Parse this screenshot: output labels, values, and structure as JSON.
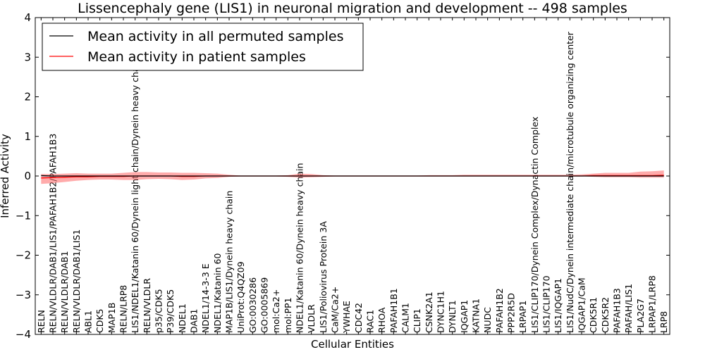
{
  "chart_data": {
    "type": "line",
    "title": "Lissencephaly gene (LIS1) in neuronal migration and development -- 498 samples",
    "xlabel": "Cellular Entities",
    "ylabel": "Inferred Activity",
    "ylim": [
      -4,
      4
    ],
    "yticks": [
      -4,
      -3,
      -2,
      -1,
      0,
      1,
      2,
      3,
      4
    ],
    "ytick_labels": [
      "−4",
      "−3",
      "−2",
      "−1",
      "0",
      "1",
      "2",
      "3",
      "4"
    ],
    "legend_position": "upper-left",
    "categories": [
      "RELN",
      "RELN/VLDLR/DAB1/LIS1/PAFAH1B2/PAFAH1B3",
      "RELN/VLDLR/DAB1",
      "RELN/VLDLR/DAB1/LIS1",
      "ABL1",
      "CDK5",
      "MAP1B",
      "RELN/LRP8",
      "LIS1/NDEL1/Katanin 60/Dynein light chain/Dynein heavy chain",
      "RELN/VLDLR",
      "p35/CDK5",
      "P39/CDK5",
      "NDEL1",
      "DAB1",
      "NDEL1/14-3-3 E",
      "NDEL1/Katanin 60",
      "MAP1B/LIS1/Dynein heavy chain",
      "UniProt:Q4QZ09",
      "GO:0030286",
      "GO:0005869",
      "mol:Ca2+",
      "mol:PP1",
      "NDEL1/Katanin 60/Dynein heavy chain",
      "VLDLR",
      "LIS1/Poliovirus Protein 3A",
      "CaM/Ca2+",
      "YWHAE",
      "CDC42",
      "RAC1",
      "RHOA",
      "PAFAH1B1",
      "CALM1",
      "CLIP1",
      "CSNK2A1",
      "DYNC1H1",
      "DYNLT1",
      "IQGAP1",
      "KATNA1",
      "NUDC",
      "PAFAH1B2",
      "PPP2R5D",
      "LRPAP1",
      "LIS1/CLIP170/Dynein Complex/Dynactin Complex",
      "LIS1/CLIP170",
      "LIS1/IQGAP1",
      "LIS1/NudC/Dynein intermediate chain/microtubule organizing center",
      "IQGAP1/CaM",
      "CDK5R1",
      "CDK5R2",
      "PAFAH1B3",
      "PAFAH/LIS1",
      "PLA2G7",
      "LRPAP1/LRP8",
      "LRP8"
    ],
    "series": [
      {
        "name": "Mean activity in all permuted samples",
        "color": "#000000",
        "values": [
          0.01,
          0.0,
          0.0,
          0.0,
          0.0,
          0.0,
          0.0,
          0.0,
          0.0,
          0.0,
          0.0,
          0.0,
          0.0,
          0.0,
          0.0,
          0.0,
          0.0,
          0.0,
          0.0,
          0.0,
          0.0,
          0.0,
          0.0,
          0.0,
          0.0,
          0.0,
          0.0,
          0.0,
          0.0,
          0.0,
          0.0,
          0.0,
          0.0,
          0.0,
          0.0,
          0.0,
          0.0,
          0.0,
          0.0,
          0.0,
          0.0,
          0.0,
          0.0,
          0.0,
          0.0,
          0.0,
          0.0,
          0.0,
          0.0,
          0.0,
          0.0,
          0.0,
          0.0,
          0.0
        ]
      },
      {
        "name": "Mean activity in patient samples",
        "color": "#ff0000",
        "values": [
          -0.05,
          -0.04,
          -0.03,
          -0.02,
          -0.02,
          -0.01,
          -0.01,
          -0.01,
          0.0,
          0.0,
          0.0,
          0.0,
          -0.01,
          -0.01,
          0.0,
          0.0,
          0.0,
          0.0,
          0.0,
          0.0,
          0.0,
          0.0,
          0.0,
          0.0,
          0.0,
          0.0,
          0.0,
          0.0,
          0.0,
          0.0,
          0.0,
          0.0,
          0.0,
          0.0,
          0.0,
          0.0,
          0.0,
          0.0,
          0.0,
          0.0,
          0.0,
          0.0,
          0.0,
          0.0,
          0.0,
          0.0,
          0.0,
          0.01,
          0.01,
          0.01,
          0.01,
          0.01,
          0.01,
          0.02
        ],
        "band_upper": [
          0.05,
          0.05,
          0.06,
          0.07,
          0.06,
          0.06,
          0.06,
          0.08,
          0.1,
          0.1,
          0.09,
          0.09,
          0.08,
          0.08,
          0.07,
          0.06,
          0.03,
          0.01,
          0.01,
          0.01,
          0.01,
          0.02,
          0.06,
          0.05,
          0.02,
          0.01,
          0.01,
          0.01,
          0.01,
          0.01,
          0.01,
          0.01,
          0.01,
          0.02,
          0.02,
          0.02,
          0.03,
          0.03,
          0.03,
          0.03,
          0.03,
          0.03,
          0.03,
          0.03,
          0.03,
          0.03,
          0.04,
          0.06,
          0.08,
          0.08,
          0.08,
          0.11,
          0.12,
          0.14
        ],
        "band_lower": [
          -0.2,
          -0.18,
          -0.15,
          -0.12,
          -0.1,
          -0.09,
          -0.09,
          -0.1,
          -0.1,
          -0.08,
          -0.07,
          -0.08,
          -0.1,
          -0.09,
          -0.06,
          -0.05,
          -0.02,
          -0.01,
          -0.01,
          -0.01,
          -0.01,
          -0.02,
          -0.04,
          -0.03,
          -0.02,
          -0.01,
          -0.01,
          -0.01,
          -0.01,
          -0.01,
          -0.01,
          -0.01,
          -0.01,
          -0.01,
          -0.01,
          -0.01,
          -0.01,
          -0.01,
          -0.01,
          -0.01,
          -0.01,
          -0.01,
          -0.01,
          -0.01,
          -0.01,
          -0.01,
          -0.01,
          -0.02,
          -0.03,
          -0.03,
          -0.03,
          -0.04,
          -0.04,
          -0.04
        ]
      }
    ]
  }
}
